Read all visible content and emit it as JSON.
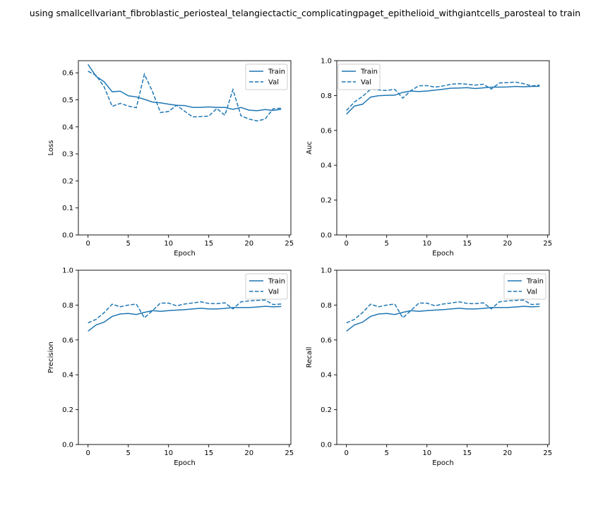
{
  "figure_title": "using smallcellvariant_fibroblastic_periosteal_telangiectactic_complicatingpaget_epithelioid_withgiantcells_parosteal to train",
  "colors": {
    "line": "#1f77b4",
    "axis": "#000000"
  },
  "chart_data": [
    {
      "type": "line",
      "xlabel": "Epoch",
      "ylabel": "Loss",
      "xlim": [
        -1.2,
        25.2
      ],
      "ylim": [
        0,
        0.645
      ],
      "xticks": [
        0,
        5,
        10,
        15,
        20,
        25
      ],
      "yticks": [
        0.0,
        0.1,
        0.2,
        0.3,
        0.4,
        0.5,
        0.6
      ],
      "ytick_labels": [
        "0.0",
        "0.1",
        "0.2",
        "0.3",
        "0.4",
        "0.5",
        "0.6"
      ],
      "legend": "upper right",
      "x": [
        0,
        1,
        2,
        3,
        4,
        5,
        6,
        7,
        8,
        9,
        10,
        11,
        12,
        13,
        14,
        15,
        16,
        17,
        18,
        19,
        20,
        21,
        22,
        23,
        24
      ],
      "series": [
        {
          "name": "Train",
          "style": "solid",
          "values": [
            0.631,
            0.587,
            0.567,
            0.53,
            0.532,
            0.515,
            0.511,
            0.502,
            0.492,
            0.489,
            0.484,
            0.48,
            0.479,
            0.472,
            0.472,
            0.474,
            0.472,
            0.472,
            0.465,
            0.472,
            0.462,
            0.46,
            0.464,
            0.461,
            0.465
          ]
        },
        {
          "name": "Val",
          "style": "dashed",
          "values": [
            0.606,
            0.591,
            0.548,
            0.476,
            0.487,
            0.477,
            0.471,
            0.595,
            0.531,
            0.453,
            0.457,
            0.48,
            0.458,
            0.437,
            0.438,
            0.44,
            0.468,
            0.443,
            0.538,
            0.441,
            0.429,
            0.422,
            0.429,
            0.467,
            0.469
          ]
        }
      ]
    },
    {
      "type": "line",
      "xlabel": "Epoch",
      "ylabel": "Auc",
      "xlim": [
        -1.2,
        25.2
      ],
      "ylim": [
        0,
        1.0
      ],
      "xticks": [
        0,
        5,
        10,
        15,
        20,
        25
      ],
      "yticks": [
        0.0,
        0.2,
        0.4,
        0.6,
        0.8,
        1.0
      ],
      "ytick_labels": [
        "0.0",
        "0.2",
        "0.4",
        "0.6",
        "0.8",
        "1.0"
      ],
      "legend": "upper left",
      "x": [
        0,
        1,
        2,
        3,
        4,
        5,
        6,
        7,
        8,
        9,
        10,
        11,
        12,
        13,
        14,
        15,
        16,
        17,
        18,
        19,
        20,
        21,
        22,
        23,
        24
      ],
      "series": [
        {
          "name": "Train",
          "style": "solid",
          "values": [
            0.693,
            0.74,
            0.75,
            0.791,
            0.799,
            0.801,
            0.802,
            0.818,
            0.826,
            0.823,
            0.826,
            0.831,
            0.836,
            0.842,
            0.843,
            0.845,
            0.84,
            0.844,
            0.848,
            0.848,
            0.849,
            0.852,
            0.85,
            0.852,
            0.853
          ]
        },
        {
          "name": "Val",
          "style": "dashed",
          "values": [
            0.714,
            0.763,
            0.795,
            0.836,
            0.832,
            0.829,
            0.836,
            0.785,
            0.828,
            0.856,
            0.857,
            0.848,
            0.855,
            0.865,
            0.868,
            0.865,
            0.86,
            0.865,
            0.837,
            0.872,
            0.874,
            0.877,
            0.868,
            0.855,
            0.86
          ]
        }
      ]
    },
    {
      "type": "line",
      "xlabel": "Epoch",
      "ylabel": "Precision",
      "xlim": [
        -1.2,
        25.2
      ],
      "ylim": [
        0,
        1.0
      ],
      "xticks": [
        0,
        5,
        10,
        15,
        20,
        25
      ],
      "yticks": [
        0.0,
        0.2,
        0.4,
        0.6,
        0.8,
        1.0
      ],
      "ytick_labels": [
        "0.0",
        "0.2",
        "0.4",
        "0.6",
        "0.8",
        "1.0"
      ],
      "legend": "upper right",
      "x": [
        0,
        1,
        2,
        3,
        4,
        5,
        6,
        7,
        8,
        9,
        10,
        11,
        12,
        13,
        14,
        15,
        16,
        17,
        18,
        19,
        20,
        21,
        22,
        23,
        24
      ],
      "series": [
        {
          "name": "Train",
          "style": "solid",
          "values": [
            0.65,
            0.686,
            0.702,
            0.735,
            0.749,
            0.752,
            0.746,
            0.758,
            0.768,
            0.764,
            0.768,
            0.771,
            0.774,
            0.778,
            0.782,
            0.778,
            0.778,
            0.781,
            0.786,
            0.786,
            0.786,
            0.789,
            0.793,
            0.79,
            0.792
          ]
        },
        {
          "name": "Val",
          "style": "dashed",
          "values": [
            0.698,
            0.718,
            0.757,
            0.805,
            0.79,
            0.8,
            0.806,
            0.727,
            0.768,
            0.812,
            0.811,
            0.796,
            0.806,
            0.812,
            0.819,
            0.809,
            0.808,
            0.813,
            0.778,
            0.819,
            0.824,
            0.827,
            0.829,
            0.803,
            0.806
          ]
        }
      ]
    },
    {
      "type": "line",
      "xlabel": "Epoch",
      "ylabel": "Recall",
      "xlim": [
        -1.2,
        25.2
      ],
      "ylim": [
        0,
        1.0
      ],
      "xticks": [
        0,
        5,
        10,
        15,
        20,
        25
      ],
      "yticks": [
        0.0,
        0.2,
        0.4,
        0.6,
        0.8,
        1.0
      ],
      "ytick_labels": [
        "0.0",
        "0.2",
        "0.4",
        "0.6",
        "0.8",
        "1.0"
      ],
      "legend": "upper right",
      "x": [
        0,
        1,
        2,
        3,
        4,
        5,
        6,
        7,
        8,
        9,
        10,
        11,
        12,
        13,
        14,
        15,
        16,
        17,
        18,
        19,
        20,
        21,
        22,
        23,
        24
      ],
      "series": [
        {
          "name": "Train",
          "style": "solid",
          "values": [
            0.65,
            0.686,
            0.702,
            0.735,
            0.749,
            0.752,
            0.746,
            0.758,
            0.768,
            0.764,
            0.768,
            0.771,
            0.774,
            0.778,
            0.782,
            0.778,
            0.778,
            0.781,
            0.786,
            0.786,
            0.786,
            0.789,
            0.793,
            0.79,
            0.792
          ]
        },
        {
          "name": "Val",
          "style": "dashed",
          "values": [
            0.698,
            0.718,
            0.757,
            0.805,
            0.79,
            0.8,
            0.806,
            0.727,
            0.768,
            0.812,
            0.811,
            0.796,
            0.806,
            0.812,
            0.819,
            0.809,
            0.808,
            0.813,
            0.778,
            0.819,
            0.824,
            0.827,
            0.829,
            0.803,
            0.806
          ]
        }
      ]
    }
  ]
}
